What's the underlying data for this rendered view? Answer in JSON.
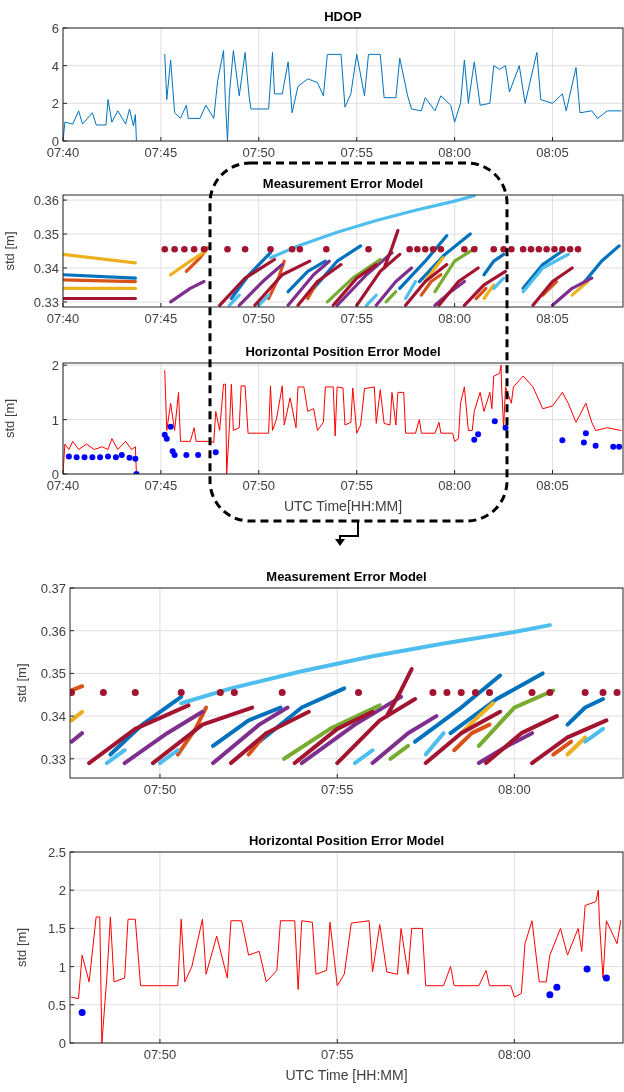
{
  "chart_data": [
    {
      "type": "line",
      "title": "HDOP",
      "xlim": [
        7.6667,
        8.1433
      ],
      "ylim": [
        0,
        6
      ],
      "grid": true,
      "xticks": [
        {
          "value": 7.6667,
          "label": "07:40"
        },
        {
          "value": 7.75,
          "label": "07:45"
        },
        {
          "value": 7.8333,
          "label": "07:50"
        },
        {
          "value": 7.9167,
          "label": "07:55"
        },
        {
          "value": 8.0,
          "label": "08:00"
        },
        {
          "value": 8.0833,
          "label": "08:05"
        }
      ],
      "yticks": [
        0,
        2,
        4,
        6
      ],
      "series": [
        {
          "color": "#0072bd",
          "x": [
            7.6667,
            7.6683,
            7.675,
            7.68,
            7.6833,
            7.6917,
            7.695,
            7.7033,
            7.705,
            7.7083,
            7.7133,
            7.72,
            7.7233,
            7.7267,
            7.7283,
            7.7292,
            null,
            7.7533,
            7.755,
            7.7583,
            7.7617,
            7.7667,
            7.7717,
            7.7733,
            7.7833,
            7.7883,
            7.795,
            7.7983,
            7.8033,
            7.805,
            7.8067,
            7.8083,
            7.8117,
            7.8167,
            7.8217,
            7.825,
            7.8267,
            7.8417,
            7.845,
            7.8467,
            7.8533,
            7.8583,
            7.8617,
            7.8667,
            7.875,
            7.8833,
            7.8883,
            7.8917,
            7.9033,
            7.9067,
            7.9117,
            7.9167,
            7.9233,
            7.9267,
            7.9367,
            7.94,
            7.95,
            7.9533,
            7.96,
            7.9633,
            7.9717,
            7.975,
            7.9833,
            7.9883,
            7.9967,
            8.0,
            8.005,
            8.0083,
            8.0117,
            8.0167,
            8.0217,
            8.03,
            8.0333,
            8.0383,
            8.0433,
            8.0467,
            8.055,
            8.06,
            8.07,
            8.0733,
            8.0833,
            8.0917,
            8.095,
            8.1033,
            8.1067,
            8.1167,
            8.1217,
            8.13,
            8.1417
          ],
          "values": [
            0,
            1.0,
            0.9,
            1.6,
            0.9,
            1.5,
            0.85,
            0.85,
            2.2,
            1.0,
            1.6,
            0.9,
            1.7,
            0.8,
            1.4,
            0,
            null,
            4.6,
            2.2,
            4.3,
            1.5,
            1.2,
            1.9,
            1.2,
            1.2,
            1.9,
            1.2,
            3.2,
            4.8,
            2.0,
            0,
            2.5,
            4.8,
            2.4,
            4.7,
            2.4,
            1.7,
            1.7,
            4.7,
            2.5,
            2.5,
            4.2,
            1.5,
            2.9,
            3.3,
            3.1,
            2.4,
            4.6,
            4.6,
            1.8,
            2.5,
            4.6,
            2.4,
            4.6,
            4.6,
            2.3,
            2.3,
            4.4,
            2.4,
            1.7,
            1.6,
            2.3,
            1.6,
            2.4,
            1.9,
            1.0,
            2.0,
            4.3,
            2.0,
            4.2,
            1.9,
            2.0,
            4.0,
            3.8,
            4.0,
            2.6,
            4.0,
            2.0,
            4.7,
            2.2,
            2.0,
            2.5,
            1.6,
            3.9,
            1.5,
            1.6,
            1.2,
            1.6,
            1.6
          ]
        }
      ]
    },
    {
      "type": "line",
      "title": "Measurement Error Model",
      "ylabel": "std [m]",
      "xlim": [
        7.6667,
        8.1433
      ],
      "ylim": [
        0.3285,
        0.3615
      ],
      "grid": true,
      "xticks": [
        {
          "value": 7.6667,
          "label": "07:40"
        },
        {
          "value": 7.75,
          "label": "07:45"
        },
        {
          "value": 7.8333,
          "label": "07:50"
        },
        {
          "value": 7.9167,
          "label": "07:55"
        },
        {
          "value": 8.0,
          "label": "08:00"
        },
        {
          "value": 8.0833,
          "label": "08:05"
        }
      ],
      "yticks": [
        0.33,
        0.34,
        0.35,
        0.36
      ],
      "series": [
        {
          "color": "#0072bd",
          "x": [
            7.6667,
            7.7283
          ],
          "values": [
            0.338,
            0.337
          ]
        },
        {
          "color": "#0072bd",
          "x": [
            7.81,
            7.825,
            7.8433
          ],
          "values": [
            0.331,
            0.338,
            0.3445
          ]
        },
        {
          "color": "#0072bd",
          "x": [
            7.8583,
            7.875,
            7.89
          ],
          "values": [
            0.333,
            0.339,
            0.342
          ]
        },
        {
          "color": "#0072bd",
          "x": [
            7.88,
            7.9,
            7.92
          ],
          "values": [
            0.334,
            0.342,
            0.3465
          ]
        },
        {
          "color": "#0072bd",
          "x": [
            7.9533,
            7.975,
            7.9933
          ],
          "values": [
            0.334,
            0.342,
            0.3495
          ]
        },
        {
          "color": "#0072bd",
          "x": [
            7.97,
            7.9917,
            8.0133
          ],
          "values": [
            0.336,
            0.344,
            0.35
          ]
        },
        {
          "color": "#0072bd",
          "x": [
            8.025,
            8.0333,
            8.0417
          ],
          "values": [
            0.338,
            0.342,
            0.344
          ]
        },
        {
          "color": "#0072bd",
          "x": [
            8.0583,
            8.075,
            8.0917
          ],
          "values": [
            0.334,
            0.341,
            0.345
          ]
        },
        {
          "color": "#0072bd",
          "x": [
            8.1083,
            8.125,
            8.14
          ],
          "values": [
            0.335,
            0.342,
            0.3465
          ]
        },
        {
          "color": "#d95319",
          "x": [
            7.6667,
            7.7283
          ],
          "values": [
            0.3365,
            0.336
          ]
        },
        {
          "color": "#d95319",
          "x": [
            7.7717,
            7.7833,
            7.79
          ],
          "values": [
            0.339,
            0.343,
            0.346
          ]
        },
        {
          "color": "#d95319",
          "x": [
            7.8417,
            7.85,
            7.855
          ],
          "values": [
            0.331,
            0.337,
            0.342
          ]
        },
        {
          "color": "#d95319",
          "x": [
            7.875,
            7.8833
          ],
          "values": [
            0.331,
            0.336
          ]
        },
        {
          "color": "#d95319",
          "x": [
            7.9717,
            7.98,
            7.9883
          ],
          "values": [
            0.332,
            0.336,
            0.338
          ]
        },
        {
          "color": "#d95319",
          "x": [
            8.0183,
            8.0267
          ],
          "values": [
            0.331,
            0.334
          ]
        },
        {
          "color": "#d95319",
          "x": [
            8.075,
            8.0867
          ],
          "values": [
            0.332,
            0.336
          ]
        },
        {
          "color": "#edb120",
          "x": [
            7.6667,
            7.7283
          ],
          "values": [
            0.344,
            0.3415
          ]
        },
        {
          "color": "#edb120",
          "x": [
            7.6667,
            7.7283
          ],
          "values": [
            0.334,
            0.334
          ]
        },
        {
          "color": "#edb120",
          "x": [
            7.7583,
            7.775,
            7.7883
          ],
          "values": [
            0.338,
            0.342,
            0.345
          ]
        },
        {
          "color": "#edb120",
          "x": [
            7.975,
            7.9833,
            7.99
          ],
          "values": [
            0.336,
            0.34,
            0.343
          ]
        },
        {
          "color": "#edb120",
          "x": [
            8.025,
            8.0333
          ],
          "values": [
            0.331,
            0.335
          ]
        },
        {
          "color": "#edb120",
          "x": [
            8.1,
            8.1133
          ],
          "values": [
            0.332,
            0.336
          ]
        },
        {
          "color": "#7e2f8e",
          "x": [
            7.7583,
            7.775,
            7.7867
          ],
          "values": [
            0.33,
            0.334,
            0.336
          ]
        },
        {
          "color": "#7e2f8e",
          "x": [
            7.8167,
            7.8367,
            7.8533
          ],
          "values": [
            0.329,
            0.336,
            0.341
          ]
        },
        {
          "color": "#7e2f8e",
          "x": [
            7.8583,
            7.88,
            7.8933
          ],
          "values": [
            0.329,
            0.338,
            0.342
          ]
        },
        {
          "color": "#7e2f8e",
          "x": [
            7.9,
            7.925,
            7.9467
          ],
          "values": [
            0.329,
            0.338,
            0.3445
          ]
        },
        {
          "color": "#7e2f8e",
          "x": [
            7.9333,
            7.95,
            7.9633
          ],
          "values": [
            0.329,
            0.336,
            0.34
          ]
        },
        {
          "color": "#7e2f8e",
          "x": [
            7.9833,
            7.9967,
            8.0083
          ],
          "values": [
            0.329,
            0.333,
            0.336
          ]
        },
        {
          "color": "#7e2f8e",
          "x": [
            8.0833,
            8.1,
            8.1167
          ],
          "values": [
            0.329,
            0.334,
            0.337
          ]
        },
        {
          "color": "#77ac30",
          "x": [
            7.8917,
            7.9133,
            7.9367
          ],
          "values": [
            0.33,
            0.337,
            0.3425
          ]
        },
        {
          "color": "#77ac30",
          "x": [
            7.9417,
            7.95
          ],
          "values": [
            0.33,
            0.333
          ]
        },
        {
          "color": "#77ac30",
          "x": [
            7.9833,
            8.0,
            8.0183
          ],
          "values": [
            0.333,
            0.342,
            0.346
          ]
        },
        {
          "color": "#4dbeee",
          "x": [
            7.8433,
            7.8667,
            7.9,
            7.9333,
            7.9667,
            8.0,
            8.0167
          ],
          "values": [
            0.343,
            0.3465,
            0.3505,
            0.354,
            0.357,
            0.3597,
            0.3613
          ]
        },
        {
          "color": "#4dbeee",
          "x": [
            7.8083,
            7.8167
          ],
          "values": [
            0.329,
            0.332
          ]
        },
        {
          "color": "#4dbeee",
          "x": [
            7.8333,
            7.8417
          ],
          "values": [
            0.329,
            0.332
          ]
        },
        {
          "color": "#4dbeee",
          "x": [
            7.925,
            7.9333
          ],
          "values": [
            0.329,
            0.332
          ]
        },
        {
          "color": "#4dbeee",
          "x": [
            7.9583,
            7.9667
          ],
          "values": [
            0.331,
            0.336
          ]
        },
        {
          "color": "#4dbeee",
          "x": [
            8.0333,
            8.0417
          ],
          "values": [
            0.334,
            0.337
          ]
        },
        {
          "color": "#4dbeee",
          "x": [
            8.0583,
            8.075,
            8.0967
          ],
          "values": [
            0.333,
            0.34,
            0.344
          ]
        },
        {
          "color": "#a2142f",
          "x": [
            7.6667,
            7.7283
          ],
          "values": [
            0.331,
            0.331
          ]
        },
        {
          "color": "#a2142f",
          "x": [
            7.8,
            7.8217,
            7.8467
          ],
          "values": [
            0.329,
            0.337,
            0.3425
          ]
        },
        {
          "color": "#a2142f",
          "x": [
            7.83,
            7.8533,
            7.8767
          ],
          "values": [
            0.329,
            0.338,
            0.342
          ]
        },
        {
          "color": "#a2142f",
          "x": [
            7.8667,
            7.8833,
            7.9033
          ],
          "values": [
            0.329,
            0.336,
            0.341
          ]
        },
        {
          "color": "#a2142f",
          "x": [
            7.8967,
            7.9167,
            7.9333
          ],
          "values": [
            0.329,
            0.337,
            0.341
          ]
        },
        {
          "color": "#a2142f",
          "x": [
            7.9167,
            7.9367,
            7.9533
          ],
          "values": [
            0.329,
            0.339,
            0.344
          ]
        },
        {
          "color": "#a2142f",
          "x": [
            7.94,
            7.9467,
            7.9517
          ],
          "values": [
            0.34,
            0.346,
            0.351
          ]
        },
        {
          "color": "#a2142f",
          "x": [
            7.9583,
            7.975,
            7.9933
          ],
          "values": [
            0.329,
            0.336,
            0.341
          ]
        },
        {
          "color": "#a2142f",
          "x": [
            7.9867,
            8.0033,
            8.02
          ],
          "values": [
            0.329,
            0.336,
            0.34
          ]
        },
        {
          "color": "#a2142f",
          "x": [
            8.0083,
            8.025,
            8.0433
          ],
          "values": [
            0.329,
            0.335,
            0.339
          ]
        },
        {
          "color": "#a2142f",
          "x": [
            8.0667,
            8.0833,
            8.1
          ],
          "values": [
            0.329,
            0.336,
            0.34
          ]
        },
        {
          "type": "scatter",
          "marker": "circle",
          "color": "#a2142f",
          "x": [
            7.7533,
            7.7617,
            7.77,
            7.7783,
            7.7867,
            7.8067,
            7.8217,
            7.8433,
            7.8617,
            7.8683,
            7.8908,
            7.9267,
            7.9617,
            7.9683,
            7.975,
            7.9817,
            7.9883,
            8.0083,
            8.0167,
            8.0333,
            8.0417,
            8.0483,
            8.0583,
            8.065,
            8.0717,
            8.0783,
            8.085,
            8.0917,
            8.0983,
            8.105
          ],
          "values": [
            0.3455,
            0.3455,
            0.3455,
            0.3455,
            0.3455,
            0.3455,
            0.3455,
            0.3455,
            0.3455,
            0.3455,
            0.3455,
            0.3455,
            0.3455,
            0.3455,
            0.3455,
            0.3455,
            0.3455,
            0.3455,
            0.3455,
            0.3455,
            0.3455,
            0.3455,
            0.3455,
            0.3455,
            0.3455,
            0.3455,
            0.3455,
            0.3455,
            0.3455,
            0.3455
          ]
        }
      ]
    },
    {
      "type": "line",
      "title": "Horizontal Position Error Model",
      "ylabel": "std [m]",
      "xlabel": "UTC Time[HH:MM]",
      "xlim": [
        7.6667,
        8.1433
      ],
      "ylim": [
        0,
        2.04
      ],
      "grid": true,
      "xticks": [
        {
          "value": 7.6667,
          "label": "07:40"
        },
        {
          "value": 7.75,
          "label": "07:45"
        },
        {
          "value": 7.8333,
          "label": "07:50"
        },
        {
          "value": 7.9167,
          "label": "07:55"
        },
        {
          "value": 8.0,
          "label": "08:00"
        },
        {
          "value": 8.0833,
          "label": "08:05"
        }
      ],
      "yticks": [
        0,
        1,
        2
      ],
      "series": [
        {
          "color": "#ff0000",
          "x": [
            7.6667,
            7.6683,
            7.6717,
            7.675,
            7.68,
            7.6867,
            7.6933,
            7.7,
            7.705,
            7.7083,
            7.7133,
            7.72,
            7.725,
            7.7283,
            7.7292,
            null,
            7.7533,
            7.755,
            7.7583,
            7.7617,
            7.765,
            7.7667,
            7.775,
            7.7783,
            7.78,
            7.7917,
            7.795,
            7.7967,
            7.8,
            7.8033,
            7.805,
            7.806,
            7.8083,
            7.81,
            7.8117,
            7.8167,
            7.8183,
            7.8217,
            7.8242,
            7.8417,
            7.8433,
            7.845,
            7.8483,
            7.8533,
            7.855,
            7.86,
            7.865,
            7.8667,
            7.8717,
            7.875,
            7.88,
            7.8833,
            7.8883,
            7.89,
            7.8967,
            7.8983,
            7.9,
            7.905,
            7.9067,
            7.9117,
            7.9133,
            7.9167,
            7.92,
            7.9233,
            7.9317,
            7.9333,
            7.9367,
            7.94,
            7.945,
            7.9467,
            7.95,
            7.9517,
            7.9567,
            7.9583,
            7.9667,
            7.97,
            7.9717,
            7.9833,
            7.9867,
            7.9883,
            7.9983,
            8.0,
            8.0033,
            8.005,
            8.0083,
            8.0117,
            8.015,
            8.0167,
            8.0217,
            8.025,
            8.03,
            8.0317,
            8.0333,
            8.0383,
            8.0395,
            8.04,
            8.0417,
            8.0433,
            8.0483,
            8.05,
            8.0583,
            8.0667,
            8.075,
            8.0833,
            8.0917,
            8.0967,
            8.1033,
            8.1117,
            8.1167,
            8.12,
            8.13,
            8.1417
          ],
          "values": [
            0,
            0.55,
            0.45,
            0.6,
            0.45,
            0.55,
            0.45,
            0.5,
            0.45,
            0.65,
            0.45,
            0.6,
            0.45,
            0.5,
            0,
            null,
            1.9,
            0.8,
            1.3,
            0.8,
            1.5,
            0.6,
            0.6,
            0.85,
            0.6,
            0.6,
            0.58,
            1.15,
            0.8,
            1.65,
            1.65,
            0,
            0.85,
            1.65,
            0.8,
            0.85,
            1.62,
            1.62,
            0.75,
            0.75,
            1.62,
            0.8,
            1.0,
            1.62,
            0.9,
            1.4,
            0.85,
            1.6,
            1.6,
            1.15,
            1.2,
            0.8,
            0.95,
            1.6,
            1.6,
            0.7,
            1.6,
            1.58,
            0.9,
            0.95,
            1.58,
            0.75,
            0.9,
            1.57,
            1.6,
            0.93,
            1.55,
            0.93,
            0.9,
            1.5,
            0.9,
            1.5,
            1.5,
            0.75,
            0.75,
            1.0,
            0.75,
            0.75,
            0.95,
            0.75,
            0.75,
            0.6,
            0.65,
            1.3,
            1.6,
            0.8,
            0.8,
            1.15,
            1.5,
            1.15,
            1.5,
            1.2,
            1.8,
            1.85,
            2.0,
            1.6,
            0.85,
            1.6,
            1.3,
            1.6,
            1.8,
            1.6,
            1.2,
            1.25,
            1.5,
            1.3,
            0.95,
            1.3,
            0.95,
            0.8,
            0.85,
            0.8
          ]
        },
        {
          "type": "scatter",
          "marker": "circle",
          "color": "#0000ff",
          "x": [
            7.6717,
            7.6783,
            7.685,
            7.6917,
            7.6983,
            7.705,
            7.7117,
            7.7167,
            7.7233,
            7.7283,
            7.7292,
            7.7533,
            7.755,
            7.7583,
            7.76,
            7.7617,
            7.7717,
            7.7817,
            7.7967,
            8.0167,
            8.02,
            8.0342,
            8.0433,
            8.0917,
            8.11,
            8.1117,
            8.12,
            8.135,
            8.14
          ],
          "values": [
            0.32,
            0.31,
            0.31,
            0.31,
            0.31,
            0.32,
            0.31,
            0.35,
            0.3,
            0.28,
            0,
            0.72,
            0.65,
            0.87,
            0.42,
            0.35,
            0.35,
            0.35,
            0.4,
            0.63,
            0.73,
            0.97,
            0.85,
            0.62,
            0.58,
            0.75,
            0.52,
            0.5,
            0.5
          ]
        }
      ]
    },
    {
      "type": "line",
      "title": "Measurement Error Model",
      "ylabel": "std [m]",
      "xlim": [
        7.791,
        8.0511
      ],
      "ylim": [
        0.3255,
        0.37
      ],
      "grid": true,
      "xticks": [
        {
          "value": 7.8333,
          "label": "07:50"
        },
        {
          "value": 7.9167,
          "label": "07:55"
        },
        {
          "value": 8.0,
          "label": "08:00"
        }
      ],
      "yticks": [
        0.33,
        0.34,
        0.35,
        0.36,
        0.37
      ],
      "series": [
        {
          "color": "#0072bd",
          "x": [
            7.81,
            7.825,
            7.8433
          ],
          "values": [
            0.331,
            0.338,
            0.3445
          ]
        },
        {
          "color": "#0072bd",
          "x": [
            7.8583,
            7.875,
            7.89
          ],
          "values": [
            0.333,
            0.339,
            0.342
          ]
        },
        {
          "color": "#0072bd",
          "x": [
            7.88,
            7.9,
            7.92
          ],
          "values": [
            0.334,
            0.342,
            0.3465
          ]
        },
        {
          "color": "#0072bd",
          "x": [
            7.9533,
            7.975,
            7.9933
          ],
          "values": [
            0.334,
            0.342,
            0.3495
          ]
        },
        {
          "color": "#0072bd",
          "x": [
            7.97,
            7.9917,
            8.0133
          ],
          "values": [
            0.336,
            0.344,
            0.35
          ]
        },
        {
          "color": "#0072bd",
          "x": [
            8.025,
            8.0333,
            8.0417
          ],
          "values": [
            0.338,
            0.342,
            0.344
          ]
        },
        {
          "color": "#d95319",
          "x": [
            7.7917,
            7.7967
          ],
          "values": [
            0.346,
            0.347
          ]
        },
        {
          "color": "#d95319",
          "x": [
            7.8417,
            7.85,
            7.855
          ],
          "values": [
            0.331,
            0.337,
            0.342
          ]
        },
        {
          "color": "#d95319",
          "x": [
            7.875,
            7.8833
          ],
          "values": [
            0.331,
            0.336
          ]
        },
        {
          "color": "#d95319",
          "x": [
            7.9717,
            7.98,
            7.9883
          ],
          "values": [
            0.332,
            0.336,
            0.338
          ]
        },
        {
          "color": "#d95319",
          "x": [
            8.0183,
            8.0267
          ],
          "values": [
            0.331,
            0.334
          ]
        },
        {
          "color": "#edb120",
          "x": [
            7.7917,
            7.7967
          ],
          "values": [
            0.339,
            0.341
          ]
        },
        {
          "color": "#edb120",
          "x": [
            7.975,
            7.9833,
            7.99
          ],
          "values": [
            0.336,
            0.34,
            0.343
          ]
        },
        {
          "color": "#edb120",
          "x": [
            8.025,
            8.0333
          ],
          "values": [
            0.331,
            0.335
          ]
        },
        {
          "color": "#7e2f8e",
          "x": [
            7.7917,
            7.7967
          ],
          "values": [
            0.334,
            0.336
          ]
        },
        {
          "color": "#7e2f8e",
          "x": [
            7.8167,
            7.8367,
            7.8533
          ],
          "values": [
            0.329,
            0.336,
            0.341
          ]
        },
        {
          "color": "#7e2f8e",
          "x": [
            7.8583,
            7.88,
            7.8933
          ],
          "values": [
            0.329,
            0.338,
            0.342
          ]
        },
        {
          "color": "#7e2f8e",
          "x": [
            7.9,
            7.925,
            7.9467
          ],
          "values": [
            0.329,
            0.338,
            0.3445
          ]
        },
        {
          "color": "#7e2f8e",
          "x": [
            7.9333,
            7.95,
            7.9633
          ],
          "values": [
            0.329,
            0.336,
            0.34
          ]
        },
        {
          "color": "#7e2f8e",
          "x": [
            7.9833,
            7.9967,
            8.0083
          ],
          "values": [
            0.329,
            0.333,
            0.336
          ]
        },
        {
          "color": "#77ac30",
          "x": [
            7.8917,
            7.9133,
            7.9367
          ],
          "values": [
            0.33,
            0.337,
            0.3425
          ]
        },
        {
          "color": "#77ac30",
          "x": [
            7.9417,
            7.95
          ],
          "values": [
            0.33,
            0.333
          ]
        },
        {
          "color": "#77ac30",
          "x": [
            7.9833,
            8.0,
            8.0183
          ],
          "values": [
            0.333,
            0.342,
            0.346
          ]
        },
        {
          "color": "#4dbeee",
          "x": [
            7.8433,
            7.8667,
            7.9,
            7.9333,
            7.9667,
            8.0,
            8.0167
          ],
          "values": [
            0.343,
            0.3465,
            0.3505,
            0.354,
            0.357,
            0.3597,
            0.3613
          ]
        },
        {
          "color": "#4dbeee",
          "x": [
            7.8083,
            7.8167
          ],
          "values": [
            0.329,
            0.332
          ]
        },
        {
          "color": "#4dbeee",
          "x": [
            7.8333,
            7.8417
          ],
          "values": [
            0.329,
            0.332
          ]
        },
        {
          "color": "#4dbeee",
          "x": [
            7.925,
            7.9333
          ],
          "values": [
            0.329,
            0.332
          ]
        },
        {
          "color": "#4dbeee",
          "x": [
            7.9583,
            7.9667
          ],
          "values": [
            0.331,
            0.336
          ]
        },
        {
          "color": "#4dbeee",
          "x": [
            8.0333,
            8.0417
          ],
          "values": [
            0.334,
            0.337
          ]
        },
        {
          "color": "#a2142f",
          "x": [
            7.8,
            7.8217,
            7.8467
          ],
          "values": [
            0.329,
            0.337,
            0.3425
          ]
        },
        {
          "color": "#a2142f",
          "x": [
            7.83,
            7.8533,
            7.8767
          ],
          "values": [
            0.329,
            0.338,
            0.342
          ]
        },
        {
          "color": "#a2142f",
          "x": [
            7.8667,
            7.8833,
            7.9033
          ],
          "values": [
            0.329,
            0.336,
            0.341
          ]
        },
        {
          "color": "#a2142f",
          "x": [
            7.8967,
            7.9167,
            7.9333
          ],
          "values": [
            0.329,
            0.337,
            0.341
          ]
        },
        {
          "color": "#a2142f",
          "x": [
            7.9167,
            7.9367,
            7.9533
          ],
          "values": [
            0.329,
            0.339,
            0.344
          ]
        },
        {
          "color": "#a2142f",
          "x": [
            7.94,
            7.9467,
            7.9517
          ],
          "values": [
            0.34,
            0.346,
            0.351
          ]
        },
        {
          "color": "#a2142f",
          "x": [
            7.9583,
            7.975,
            7.9933
          ],
          "values": [
            0.329,
            0.336,
            0.341
          ]
        },
        {
          "color": "#a2142f",
          "x": [
            7.9867,
            8.0033,
            8.02
          ],
          "values": [
            0.329,
            0.336,
            0.34
          ]
        },
        {
          "color": "#a2142f",
          "x": [
            8.0083,
            8.025,
            8.0433
          ],
          "values": [
            0.329,
            0.335,
            0.339
          ]
        },
        {
          "type": "scatter",
          "marker": "circle",
          "color": "#a2142f",
          "x": [
            7.7917,
            7.8067,
            7.8217,
            7.8433,
            7.8617,
            7.8683,
            7.8908,
            7.9267,
            7.9617,
            7.9683,
            7.975,
            7.9817,
            7.9883,
            8.0083,
            8.0167,
            8.0333,
            8.0417,
            8.0483
          ],
          "values": [
            0.3455,
            0.3455,
            0.3455,
            0.3455,
            0.3455,
            0.3455,
            0.3455,
            0.3455,
            0.3455,
            0.3455,
            0.3455,
            0.3455,
            0.3455,
            0.3455,
            0.3455,
            0.3455,
            0.3455,
            0.3455
          ]
        }
      ]
    },
    {
      "type": "line",
      "title": "Horizontal Position Error Model",
      "ylabel": "std [m]",
      "xlabel": "UTC Time [HH:MM]",
      "xlim": [
        7.791,
        8.0511
      ],
      "ylim": [
        0,
        2.5
      ],
      "grid": true,
      "xticks": [
        {
          "value": 7.8333,
          "label": "07:50"
        },
        {
          "value": 7.9167,
          "label": "07:55"
        },
        {
          "value": 8.0,
          "label": "08:00"
        }
      ],
      "yticks": [
        0,
        0.5,
        1,
        1.5,
        2,
        2.5
      ],
      "series": [
        {
          "color": "#ff0000",
          "x": [
            7.7917,
            7.795,
            7.7967,
            7.8,
            7.8033,
            7.805,
            7.806,
            7.8083,
            7.81,
            7.8117,
            7.8167,
            7.8183,
            7.8217,
            7.8242,
            7.8417,
            7.8433,
            7.845,
            7.8483,
            7.8533,
            7.855,
            7.86,
            7.865,
            7.8667,
            7.8717,
            7.875,
            7.88,
            7.8833,
            7.8883,
            7.89,
            7.8967,
            7.8983,
            7.9,
            7.905,
            7.9067,
            7.9117,
            7.9133,
            7.9167,
            7.92,
            7.9233,
            7.9317,
            7.9333,
            7.9367,
            7.94,
            7.945,
            7.9467,
            7.95,
            7.9517,
            7.9567,
            7.9583,
            7.9667,
            7.97,
            7.9717,
            7.9833,
            7.9867,
            7.9883,
            7.9983,
            8.0,
            8.0033,
            8.005,
            8.0083,
            8.0117,
            8.015,
            8.0167,
            8.0217,
            8.025,
            8.03,
            8.0317,
            8.0333,
            8.0383,
            8.0395,
            8.04,
            8.0417,
            8.0433,
            8.0483,
            8.05
          ],
          "values": [
            0.6,
            0.58,
            1.15,
            0.8,
            1.65,
            1.65,
            0,
            0.85,
            1.65,
            0.8,
            0.85,
            1.62,
            1.62,
            0.75,
            0.75,
            1.62,
            0.8,
            1.0,
            1.62,
            0.9,
            1.4,
            0.85,
            1.6,
            1.6,
            1.15,
            1.2,
            0.8,
            0.95,
            1.6,
            1.6,
            0.7,
            1.6,
            1.58,
            0.9,
            0.95,
            1.58,
            0.75,
            0.9,
            1.57,
            1.6,
            0.93,
            1.55,
            0.93,
            0.9,
            1.5,
            0.9,
            1.5,
            1.5,
            0.75,
            0.75,
            1.0,
            0.75,
            0.75,
            0.95,
            0.75,
            0.75,
            0.6,
            0.65,
            1.3,
            1.6,
            0.8,
            0.8,
            1.15,
            1.5,
            1.15,
            1.5,
            1.2,
            1.8,
            1.85,
            2.0,
            1.6,
            0.85,
            1.6,
            1.3,
            1.6
          ]
        },
        {
          "type": "scatter",
          "marker": "circle",
          "color": "#0000ff",
          "x": [
            7.7967,
            8.0167,
            8.02,
            8.0342,
            8.0433
          ],
          "values": [
            0.4,
            0.63,
            0.73,
            0.97,
            0.85
          ]
        }
      ]
    }
  ]
}
